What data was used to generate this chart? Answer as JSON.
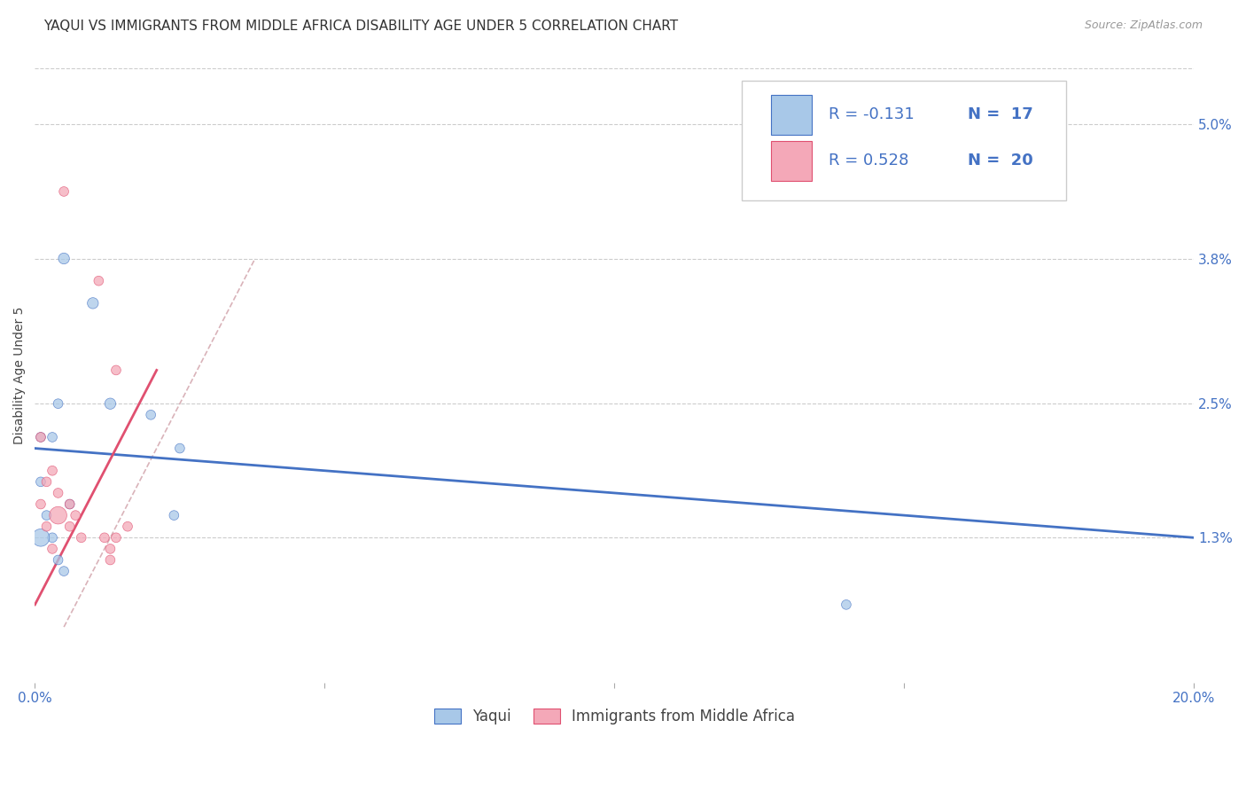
{
  "title": "YAQUI VS IMMIGRANTS FROM MIDDLE AFRICA DISABILITY AGE UNDER 5 CORRELATION CHART",
  "source": "Source: ZipAtlas.com",
  "ylabel": "Disability Age Under 5",
  "xmin": 0.0,
  "xmax": 0.2,
  "ymin": 0.0,
  "ymax": 0.055,
  "yticks": [
    0.013,
    0.025,
    0.038,
    0.05
  ],
  "ytick_labels": [
    "1.3%",
    "2.5%",
    "3.8%",
    "5.0%"
  ],
  "xticks": [
    0.0,
    0.05,
    0.1,
    0.15,
    0.2
  ],
  "xtick_labels": [
    "0.0%",
    "",
    "",
    "",
    "20.0%"
  ],
  "legend_r_labels": [
    "R = -0.131",
    "R = 0.528"
  ],
  "legend_n_labels": [
    "N =  17",
    "N =  20"
  ],
  "legend_labels": [
    "Yaqui",
    "Immigrants from Middle Africa"
  ],
  "yaqui_x": [
    0.005,
    0.01,
    0.013,
    0.02,
    0.025,
    0.001,
    0.003,
    0.004,
    0.006,
    0.001,
    0.002,
    0.003,
    0.004,
    0.005,
    0.024,
    0.14,
    0.001
  ],
  "yaqui_y": [
    0.038,
    0.034,
    0.025,
    0.024,
    0.021,
    0.022,
    0.022,
    0.025,
    0.016,
    0.018,
    0.015,
    0.013,
    0.011,
    0.01,
    0.015,
    0.007,
    0.013
  ],
  "yaqui_sizes": [
    80,
    80,
    80,
    60,
    60,
    60,
    60,
    60,
    60,
    60,
    60,
    60,
    60,
    60,
    60,
    60,
    200
  ],
  "immigrants_x": [
    0.005,
    0.011,
    0.014,
    0.001,
    0.003,
    0.004,
    0.006,
    0.007,
    0.002,
    0.004,
    0.006,
    0.008,
    0.012,
    0.014,
    0.001,
    0.002,
    0.003,
    0.013,
    0.016,
    0.013
  ],
  "immigrants_y": [
    0.044,
    0.036,
    0.028,
    0.022,
    0.019,
    0.017,
    0.016,
    0.015,
    0.018,
    0.015,
    0.014,
    0.013,
    0.013,
    0.013,
    0.016,
    0.014,
    0.012,
    0.011,
    0.014,
    0.012
  ],
  "immigrants_sizes": [
    60,
    60,
    60,
    60,
    60,
    60,
    60,
    60,
    60,
    200,
    60,
    60,
    60,
    60,
    60,
    60,
    60,
    60,
    60,
    60
  ],
  "blue_line_x": [
    0.0,
    0.2
  ],
  "blue_line_y": [
    0.021,
    0.013
  ],
  "pink_line_x": [
    0.0,
    0.021
  ],
  "pink_line_y": [
    0.007,
    0.028
  ],
  "diag_line_x": [
    0.005,
    0.038
  ],
  "diag_line_y": [
    0.005,
    0.038
  ],
  "bg_color": "#ffffff",
  "scatter_blue": "#a8c8e8",
  "scatter_pink": "#f4a8b8",
  "line_blue": "#4472c4",
  "line_pink": "#e05070",
  "diag_color": "#d0a0a8",
  "grid_color": "#cccccc",
  "title_fontsize": 11,
  "axis_label_fontsize": 10,
  "tick_fontsize": 11,
  "legend_fontsize": 13
}
